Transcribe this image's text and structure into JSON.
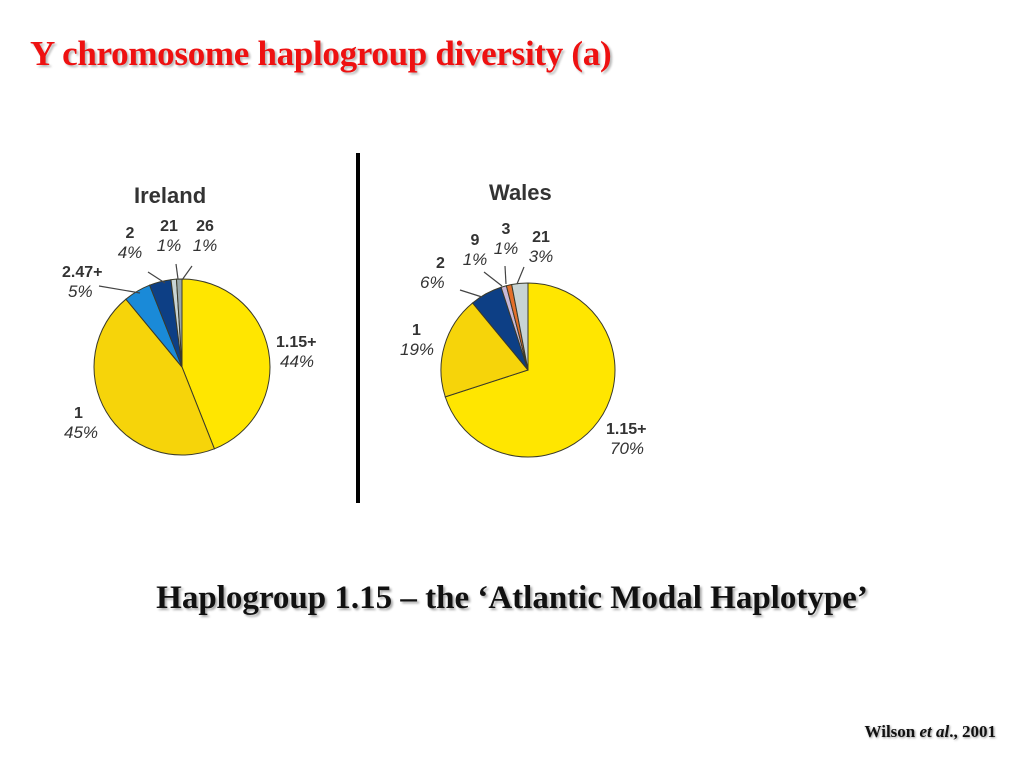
{
  "slide": {
    "title": "Y chromosome haplogroup diversity (a)",
    "subtitle": "Haplogroup 1.15 – the ‘Atlantic Modal Haplotype’",
    "citation": {
      "author": "Wilson ",
      "etal": "et al",
      "rest": "., 2001"
    }
  },
  "colors": {
    "title": "#ee1111",
    "yellow_bright": "#ffe600",
    "yellow_dark": "#f6d40a",
    "light_blue": "#1a8ad8",
    "dark_blue": "#0d3f85",
    "pale_grey": "#c8d4d4",
    "orange": "#e4702a",
    "lavender": "#c8b8d8"
  },
  "chart_data": [
    {
      "type": "pie",
      "title": "Ireland",
      "categories": [
        "1.15+",
        "1",
        "2.47+",
        "2",
        "21",
        "26"
      ],
      "values": [
        44,
        45,
        5,
        4,
        1,
        1
      ],
      "labels": [
        "44%",
        "45%",
        "5%",
        "4%",
        "1%",
        "1%"
      ],
      "colors": [
        "#ffe600",
        "#f6d40a",
        "#1a8ad8",
        "#0d3f85",
        "#c8d4d4",
        "#9aa8a8"
      ]
    },
    {
      "type": "pie",
      "title": "Wales",
      "categories": [
        "1.15+",
        "1",
        "2",
        "9",
        "3",
        "21"
      ],
      "values": [
        70,
        19,
        6,
        1,
        1,
        3
      ],
      "labels": [
        "70%",
        "19%",
        "6%",
        "1%",
        "1%",
        "3%"
      ],
      "colors": [
        "#ffe600",
        "#f6d40a",
        "#0d3f85",
        "#c8b8d8",
        "#e4702a",
        "#c8d4d4"
      ]
    }
  ]
}
